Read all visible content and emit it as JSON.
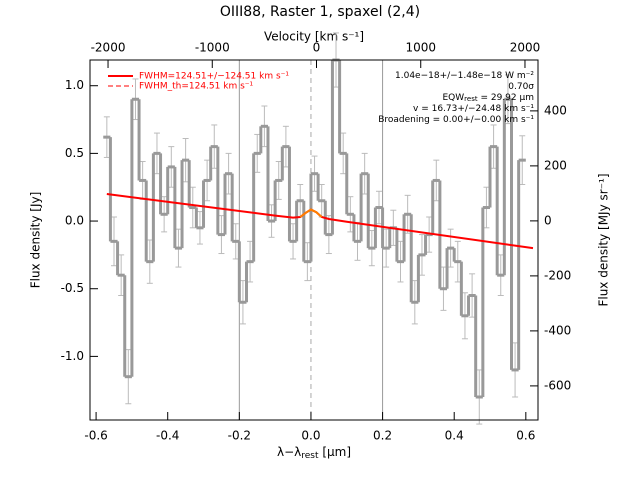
{
  "chart_data": {
    "type": "step",
    "title": "OIII88, Raster 1, spaxel (2,4)",
    "x2label": "Velocity [km s⁻¹]",
    "xlabel": [
      "λ−λ",
      "rest",
      " [μm]"
    ],
    "ylabel": "Flux density [Jy]",
    "y2label": "Flux density [MJy sr⁻¹]",
    "xlim": [
      -0.617,
      0.634
    ],
    "xticks": [
      -0.6,
      -0.4,
      -0.2,
      {
        "value": 0,
        "label": "0.0"
      },
      0.2,
      0.4,
      0.6
    ],
    "x2lim": [
      -2173,
      2125
    ],
    "x2ticks": [
      -2000,
      -1000,
      0,
      1000,
      2000
    ],
    "ylim": [
      -1.47,
      1.19
    ],
    "yticks": [
      {
        "value": -1,
        "label": "-1.0"
      },
      -0.5,
      {
        "value": 0,
        "label": "0.0"
      },
      0.5,
      {
        "value": 1,
        "label": "1.0"
      }
    ],
    "y2lim": [
      -724,
      585
    ],
    "y2ticks": [
      -600,
      -400,
      -200,
      0,
      200,
      400
    ],
    "vlines": [
      -0.2,
      0.2
    ],
    "dashed_vline": 0,
    "x": [
      -0.57,
      -0.55,
      -0.53,
      -0.51,
      -0.49,
      -0.47,
      -0.45,
      -0.43,
      -0.41,
      -0.39,
      -0.37,
      -0.35,
      -0.33,
      -0.31,
      -0.29,
      -0.27,
      -0.25,
      -0.23,
      -0.21,
      -0.19,
      -0.17,
      -0.15,
      -0.13,
      -0.11,
      -0.09,
      -0.07,
      -0.05,
      -0.03,
      -0.01,
      0.01,
      0.03,
      0.05,
      0.07,
      0.09,
      0.11,
      0.13,
      0.15,
      0.17,
      0.19,
      0.21,
      0.23,
      0.25,
      0.27,
      0.29,
      0.31,
      0.33,
      0.35,
      0.37,
      0.39,
      0.41,
      0.43,
      0.45,
      0.47,
      0.49,
      0.51,
      0.53,
      0.55,
      0.57,
      0.59
    ],
    "series": [
      {
        "color": "#999999",
        "values": [
          0.62,
          -0.15,
          -0.4,
          -1.15,
          0.9,
          0.3,
          -0.3,
          0.5,
          0.05,
          0.4,
          -0.2,
          0.45,
          0.1,
          -0.05,
          0.3,
          0.55,
          -0.1,
          0.35,
          -0.15,
          -0.6,
          -0.3,
          0.5,
          0.7,
          0.0,
          0.3,
          0.55,
          -0.15,
          0.15,
          -0.3,
          0.35,
          0.15,
          -0.1,
          1.19,
          0.5,
          0.05,
          -0.15,
          0.35,
          -0.2,
          0.1,
          -0.2,
          -0.05,
          -0.3,
          0.05,
          -0.6,
          -0.25,
          -0.1,
          0.3,
          -0.5,
          -0.2,
          -0.3,
          -0.7,
          -0.55,
          -1.3,
          0.1,
          0.55,
          -0.4,
          0.9,
          -1.1,
          0.45
        ],
        "errors": [
          0.15,
          0.18,
          0.15,
          0.2,
          0.15,
          0.14,
          0.16,
          0.15,
          0.13,
          0.15,
          0.14,
          0.16,
          0.15,
          0.12,
          0.15,
          0.16,
          0.14,
          0.15,
          0.13,
          0.16,
          0.15,
          0.14,
          0.15,
          0.12,
          0.14,
          0.15,
          0.13,
          0.12,
          0.14,
          0.13,
          0.12,
          0.14,
          0.2,
          0.15,
          0.13,
          0.14,
          0.15,
          0.13,
          0.12,
          0.14,
          0.13,
          0.15,
          0.14,
          0.16,
          0.15,
          0.13,
          0.15,
          0.16,
          0.14,
          0.15,
          0.17,
          0.16,
          0.2,
          0.15,
          0.16,
          0.15,
          0.18,
          0.2,
          0.18
        ]
      }
    ],
    "fit": {
      "color": "#ff0000",
      "peak_color": "#ff8000",
      "x": [
        -0.57,
        -0.1,
        -0.05,
        -0.03,
        -0.015,
        0.0,
        0.015,
        0.03,
        0.05,
        0.1,
        0.62
      ],
      "values": [
        0.2,
        0.04,
        0.025,
        0.03,
        0.06,
        0.085,
        0.065,
        0.03,
        0.015,
        -0.005,
        -0.2
      ],
      "peak_range": [
        -0.04,
        0.04
      ]
    },
    "legend": [
      {
        "label": "FWHM=124.51+/−124.51 km s⁻¹",
        "color": "#ff0000",
        "dash": false
      },
      {
        "label": "FWHM_th=124.51 km s⁻¹",
        "color": "#ff0000",
        "dash": true
      }
    ],
    "annotations": [
      [
        "1.04e−18+/−1.48e−18 W m⁻²"
      ],
      [
        "0.70σ"
      ],
      [
        "EQW",
        "rest",
        " = 29.92 μm"
      ],
      [
        "v = 16.73+/−24.48 km s⁻¹"
      ],
      [
        "Broadening = 0.00+/−0.00 km s⁻¹"
      ]
    ]
  }
}
